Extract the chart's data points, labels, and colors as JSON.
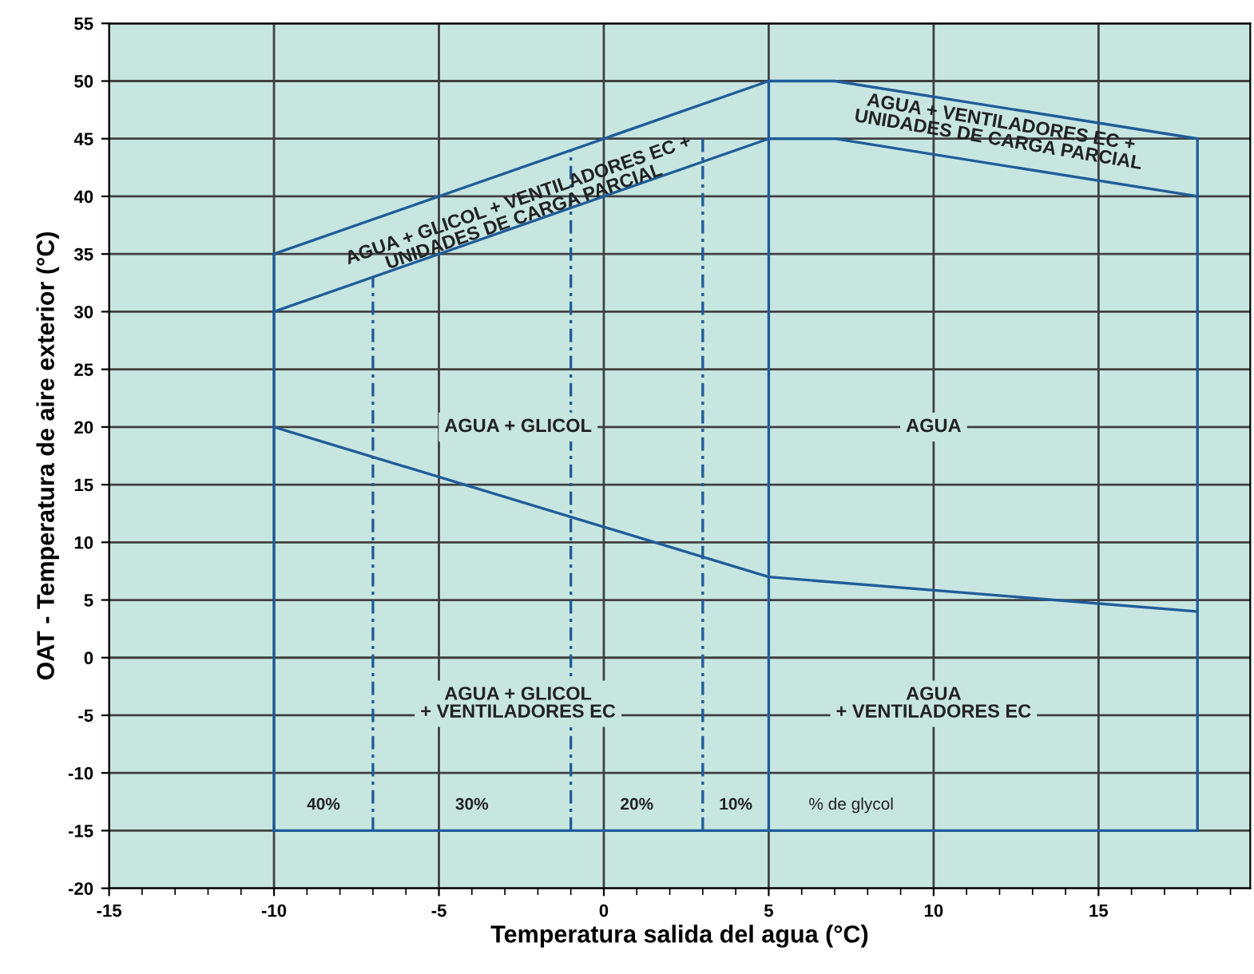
{
  "chart_data": {
    "type": "line",
    "xlabel": "Temperatura salida del agua (°C)",
    "ylabel": "OAT - Temperatura de aire exterior (°C)",
    "xlim": [
      -15,
      19.6
    ],
    "ylim": [
      -20,
      55
    ],
    "xticks": [
      -15,
      -10,
      -5,
      0,
      5,
      10,
      15
    ],
    "yticks": [
      -20,
      -15,
      -10,
      -5,
      0,
      5,
      10,
      15,
      20,
      25,
      30,
      35,
      40,
      45,
      50,
      55
    ],
    "grid": true,
    "marker": "none",
    "series": [
      {
        "color": "#1f5c99",
        "line_style": "solid",
        "x": [
          -10,
          5,
          7,
          18
        ],
        "values": [
          35,
          50,
          50,
          45
        ]
      },
      {
        "color": "#1f5c99",
        "line_style": "solid",
        "x": [
          -10,
          18
        ],
        "values": [
          -15,
          -15
        ]
      },
      {
        "color": "#1f5c99",
        "line_style": "solid",
        "x": [
          -10,
          -10
        ],
        "values": [
          -15,
          35
        ]
      },
      {
        "color": "#1f5c99",
        "line_style": "solid",
        "x": [
          18,
          18
        ],
        "values": [
          -15,
          45
        ]
      },
      {
        "color": "#1f5c99",
        "line_style": "solid",
        "x": [
          -10,
          5,
          7,
          18
        ],
        "values": [
          30,
          45,
          45,
          40
        ]
      },
      {
        "color": "#1f5c99",
        "line_style": "solid",
        "x": [
          5,
          5
        ],
        "values": [
          -15,
          50
        ]
      },
      {
        "color": "#1f5c99",
        "line_style": "solid",
        "x": [
          -10,
          5,
          18
        ],
        "values": [
          20,
          7,
          4
        ]
      },
      {
        "color": "#1f5c99",
        "line_style": "dashed",
        "x": [
          -7,
          -7
        ],
        "values": [
          -15,
          33
        ]
      },
      {
        "color": "#1f5c99",
        "line_style": "dashed",
        "x": [
          -1,
          -1
        ],
        "values": [
          -15,
          44
        ]
      },
      {
        "color": "#1f5c99",
        "line_style": "dashed",
        "x": [
          3,
          3
        ],
        "values": [
          -15,
          45
        ]
      }
    ],
    "annotations": [
      "AGUA + GLICOL + VENTILADORES EC +\nUNIDADES DE CARGA PARCIAL",
      "AGUA + VENTILADORES EC +\nUNIDADES DE CARGA PARCIAL",
      "AGUA + GLICOL",
      "AGUA",
      "AGUA + GLICOL\n+ VENTILADORES EC",
      "AGUA\n+ VENTILADORES EC",
      "40%",
      "30%",
      "20%",
      "10%",
      "% de glycol"
    ]
  }
}
